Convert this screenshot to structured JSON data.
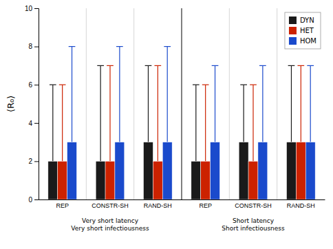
{
  "chart_data": {
    "type": "bar",
    "ylabel": "⟨R₀⟩",
    "categories": [
      "REP",
      "CONSTR-SH",
      "RAND-SH",
      "REP",
      "CONSTR-SH",
      "RAND-SH"
    ],
    "series": [
      {
        "name": "DYN",
        "color": "#1a1a1a",
        "values": [
          2,
          2,
          3,
          2,
          3,
          3
        ],
        "whisker_high": [
          6,
          7,
          7,
          6,
          6,
          7
        ]
      },
      {
        "name": "HET",
        "color": "#cc2200",
        "values": [
          2,
          2,
          2,
          2,
          2,
          3
        ],
        "whisker_high": [
          6,
          7,
          7,
          6,
          6,
          7
        ]
      },
      {
        "name": "HOM",
        "color": "#1a4acc",
        "values": [
          3,
          3,
          3,
          3,
          3,
          3
        ],
        "whisker_high": [
          8,
          8,
          8,
          7,
          7,
          7
        ]
      }
    ],
    "ylim": [
      0,
      10
    ],
    "yticks": [
      0,
      2,
      4,
      6,
      8,
      10
    ],
    "legend": "upper right",
    "annotations": [
      "Very short latency\nVery short infectiousness",
      "Short latency\nShort infectiousness"
    ]
  }
}
